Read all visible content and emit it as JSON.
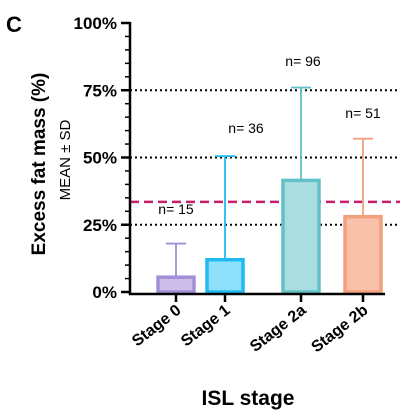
{
  "chart_data": {
    "panel_label": "C",
    "type": "bar",
    "ylabel": "Excess fat mass (%)",
    "ylabel_sub": "MEAN ± SD",
    "xlabel": "ISL stage",
    "ylim": [
      0,
      100
    ],
    "yticks": [
      0,
      25,
      50,
      75,
      100
    ],
    "ytick_labels": [
      "0%",
      "25%",
      "50%",
      "75%",
      "100%"
    ],
    "dotted_reference_lines": [
      25,
      50,
      75
    ],
    "dashed_reference_line": 33.5,
    "categories": [
      "Stage 0",
      "Stage 1",
      "Stage 2a",
      "Stage 2b"
    ],
    "values": [
      5.5,
      12,
      41.5,
      28
    ],
    "sd": [
      12.5,
      38.5,
      34.5,
      29
    ],
    "n_labels": [
      "n= 15",
      "n= 36",
      "n= 96",
      "n= 51"
    ],
    "colors": {
      "fill": [
        "#cbbfe9",
        "#8fe0fb",
        "#a9dde0",
        "#f9c0aa"
      ],
      "stroke": [
        "#a38fd6",
        "#21b9f2",
        "#62c0c7",
        "#f2a07e"
      ],
      "dashed_line": "#c71f6e",
      "axis": "#000000"
    },
    "grid": false,
    "legend": "none"
  }
}
